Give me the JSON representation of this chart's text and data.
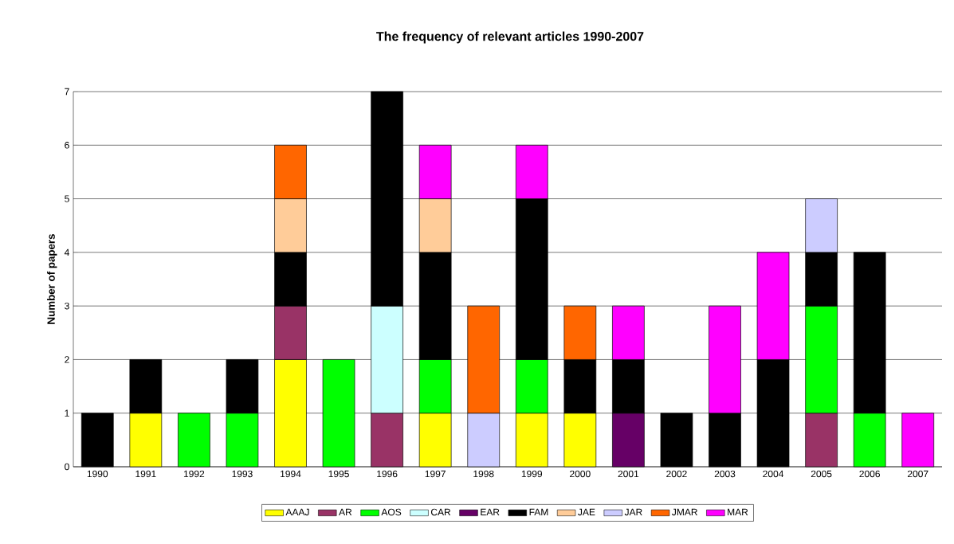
{
  "chart_data": {
    "type": "bar",
    "title": "The frequency of relevant articles 1990-2007",
    "ylabel": "Number of papers",
    "categories": [
      "1990",
      "1991",
      "1992",
      "1993",
      "1994",
      "1995",
      "1996",
      "1997",
      "1998",
      "1999",
      "2000",
      "2001",
      "2002",
      "2003",
      "2004",
      "2005",
      "2006",
      "2007"
    ],
    "stacked": true,
    "ylim": [
      0,
      7
    ],
    "yticks": [
      0,
      1,
      2,
      3,
      4,
      5,
      6,
      7
    ],
    "grid": "y",
    "legend": "bottom",
    "series": [
      {
        "name": "AAAJ",
        "color": "#ffff00",
        "values": [
          null,
          1,
          null,
          null,
          2,
          null,
          null,
          1,
          null,
          1,
          1,
          null,
          null,
          null,
          null,
          null,
          null,
          null
        ]
      },
      {
        "name": "AR",
        "color": "#993366",
        "values": [
          null,
          null,
          null,
          null,
          1,
          null,
          1,
          null,
          null,
          null,
          null,
          null,
          null,
          null,
          null,
          1,
          null,
          null
        ]
      },
      {
        "name": "AOS",
        "color": "#00ff00",
        "values": [
          null,
          null,
          1,
          1,
          null,
          2,
          null,
          1,
          null,
          1,
          null,
          null,
          null,
          null,
          null,
          2,
          1,
          null
        ]
      },
      {
        "name": "CAR",
        "color": "#ccffff",
        "values": [
          null,
          null,
          null,
          null,
          null,
          null,
          2,
          null,
          null,
          null,
          null,
          null,
          null,
          null,
          null,
          null,
          null,
          null
        ]
      },
      {
        "name": "EAR",
        "color": "#660066",
        "values": [
          null,
          null,
          null,
          null,
          null,
          null,
          null,
          null,
          null,
          null,
          null,
          1,
          null,
          null,
          null,
          null,
          null,
          null
        ]
      },
      {
        "name": "FAM",
        "color": "#000000",
        "values": [
          1,
          1,
          null,
          1,
          1,
          null,
          4,
          2,
          null,
          3,
          1,
          1,
          1,
          1,
          2,
          1,
          3,
          null
        ]
      },
      {
        "name": "JAE",
        "color": "#ffcc99",
        "values": [
          null,
          null,
          null,
          null,
          1,
          null,
          null,
          1,
          null,
          null,
          null,
          null,
          null,
          null,
          null,
          null,
          null,
          null
        ]
      },
      {
        "name": "JAR",
        "color": "#ccccff",
        "values": [
          null,
          null,
          null,
          null,
          null,
          null,
          null,
          null,
          1,
          null,
          null,
          null,
          null,
          null,
          null,
          1,
          null,
          null
        ]
      },
      {
        "name": "JMAR",
        "color": "#ff6600",
        "values": [
          null,
          null,
          null,
          null,
          1,
          null,
          null,
          null,
          2,
          null,
          1,
          null,
          null,
          null,
          null,
          null,
          null,
          null
        ]
      },
      {
        "name": "MAR",
        "color": "#ff00ff",
        "values": [
          null,
          null,
          null,
          null,
          null,
          null,
          null,
          1,
          null,
          1,
          null,
          1,
          null,
          2,
          2,
          null,
          null,
          1
        ]
      }
    ]
  }
}
